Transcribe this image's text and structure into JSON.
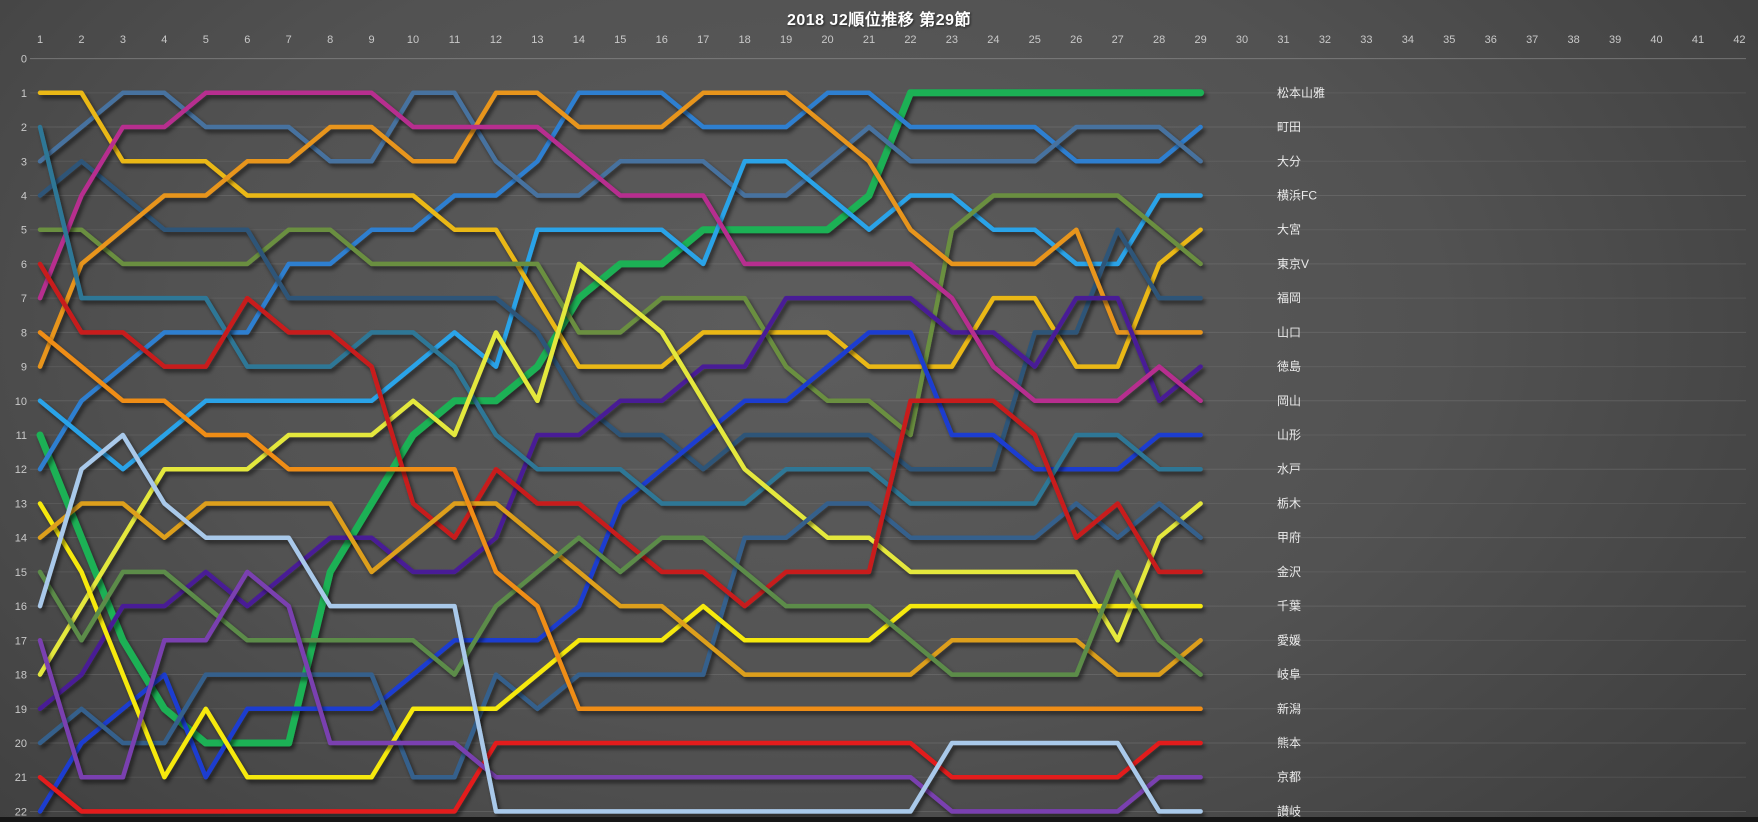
{
  "title": "2018 J2順位推移 第29節",
  "colors": {
    "background_center": "#5d5d5d",
    "background_edge": "#363636",
    "gridline": "#8a8a8a",
    "axis_top_line": "#9a9a9a",
    "axis_label": "#c9c9c9",
    "title_text": "#ffffff",
    "legend_label": "#ebebeb",
    "bottom_bar": "#161616"
  },
  "chart_data": {
    "type": "line",
    "variant": "bump-rank-chart",
    "title": "2018 J2順位推移 第29節",
    "xlabel": "",
    "ylabel": "",
    "x_axis_position": "top",
    "y_inverted": true,
    "grid": "horizontal",
    "legend_position": "right",
    "rounds_played": 29,
    "total_rounds": 42,
    "x_ticks": [
      1,
      2,
      3,
      4,
      5,
      6,
      7,
      8,
      9,
      10,
      11,
      12,
      13,
      14,
      15,
      16,
      17,
      18,
      19,
      20,
      21,
      22,
      23,
      24,
      25,
      26,
      27,
      28,
      29,
      30,
      31,
      32,
      33,
      34,
      35,
      36,
      37,
      38,
      39,
      40,
      41,
      42
    ],
    "y_ticks": [
      0,
      1,
      2,
      3,
      4,
      5,
      6,
      7,
      8,
      9,
      10,
      11,
      12,
      13,
      14,
      15,
      16,
      17,
      18,
      19,
      20,
      21,
      22
    ],
    "highlight_series": "松本山雅",
    "series": [
      {
        "name": "松本山雅",
        "color": "#1cb154",
        "final_rank": 1,
        "values": [
          11,
          14,
          17,
          19,
          20,
          20,
          20,
          15,
          13,
          11,
          10,
          10,
          9,
          7,
          6,
          6,
          5,
          5,
          5,
          5,
          4,
          1,
          1,
          1,
          1,
          1,
          1,
          1,
          1
        ]
      },
      {
        "name": "町田",
        "color": "#2e7fd0",
        "final_rank": 2,
        "values": [
          12,
          10,
          9,
          8,
          8,
          8,
          6,
          6,
          5,
          5,
          4,
          4,
          3,
          1,
          1,
          1,
          2,
          2,
          2,
          1,
          1,
          2,
          2,
          2,
          2,
          3,
          3,
          3,
          2
        ]
      },
      {
        "name": "大分",
        "color": "#46729f",
        "final_rank": 3,
        "values": [
          3,
          2,
          1,
          1,
          2,
          2,
          2,
          3,
          3,
          1,
          1,
          3,
          4,
          4,
          3,
          3,
          3,
          4,
          4,
          3,
          2,
          3,
          3,
          3,
          3,
          2,
          2,
          2,
          3
        ]
      },
      {
        "name": "横浜FC",
        "color": "#29a3e8",
        "final_rank": 4,
        "values": [
          10,
          11,
          12,
          11,
          10,
          10,
          10,
          10,
          10,
          9,
          8,
          9,
          5,
          5,
          5,
          5,
          6,
          3,
          3,
          4,
          5,
          4,
          4,
          5,
          5,
          6,
          6,
          4,
          4
        ]
      },
      {
        "name": "大宮",
        "color": "#eab816",
        "final_rank": 5,
        "values": [
          1,
          1,
          3,
          3,
          3,
          4,
          4,
          4,
          4,
          4,
          5,
          5,
          7,
          9,
          9,
          9,
          8,
          8,
          8,
          8,
          9,
          9,
          9,
          7,
          7,
          9,
          9,
          6,
          5
        ]
      },
      {
        "name": "東京V",
        "color": "#6a8f3f",
        "final_rank": 6,
        "values": [
          5,
          5,
          6,
          6,
          6,
          6,
          5,
          5,
          6,
          6,
          6,
          6,
          6,
          8,
          8,
          7,
          7,
          7,
          9,
          10,
          10,
          11,
          5,
          4,
          4,
          4,
          4,
          5,
          6
        ]
      },
      {
        "name": "福岡",
        "color": "#2f5578",
        "final_rank": 7,
        "values": [
          4,
          3,
          4,
          5,
          5,
          5,
          7,
          7,
          7,
          7,
          7,
          7,
          8,
          10,
          11,
          11,
          12,
          11,
          11,
          11,
          11,
          12,
          12,
          12,
          8,
          8,
          5,
          7,
          7
        ]
      },
      {
        "name": "山口",
        "color": "#e8951c",
        "final_rank": 8,
        "values": [
          9,
          6,
          5,
          4,
          4,
          3,
          3,
          2,
          2,
          3,
          3,
          1,
          1,
          2,
          2,
          2,
          1,
          1,
          1,
          2,
          3,
          5,
          6,
          6,
          6,
          5,
          8,
          8,
          8
        ]
      },
      {
        "name": "徳島",
        "color": "#4a1f96",
        "final_rank": 9,
        "values": [
          19,
          18,
          16,
          16,
          15,
          16,
          15,
          14,
          14,
          15,
          15,
          14,
          11,
          11,
          10,
          10,
          9,
          9,
          7,
          7,
          7,
          7,
          8,
          8,
          9,
          7,
          7,
          10,
          9
        ]
      },
      {
        "name": "岡山",
        "color": "#b72f8f",
        "final_rank": 10,
        "values": [
          7,
          4,
          2,
          2,
          1,
          1,
          1,
          1,
          1,
          2,
          2,
          2,
          2,
          3,
          4,
          4,
          4,
          6,
          6,
          6,
          6,
          6,
          7,
          9,
          10,
          10,
          10,
          9,
          10
        ]
      },
      {
        "name": "山形",
        "color": "#1f3ed0",
        "final_rank": 11,
        "values": [
          22,
          20,
          19,
          18,
          21,
          19,
          19,
          19,
          19,
          18,
          17,
          17,
          17,
          16,
          13,
          12,
          11,
          10,
          10,
          9,
          8,
          8,
          11,
          11,
          12,
          12,
          12,
          11,
          11
        ]
      },
      {
        "name": "水戸",
        "color": "#2e7796",
        "final_rank": 12,
        "values": [
          2,
          7,
          7,
          7,
          7,
          9,
          9,
          9,
          8,
          8,
          9,
          11,
          12,
          12,
          12,
          13,
          13,
          13,
          12,
          12,
          12,
          13,
          13,
          13,
          13,
          11,
          11,
          12,
          12
        ]
      },
      {
        "name": "栃木",
        "color": "#e4e83e",
        "final_rank": 13,
        "values": [
          18,
          16,
          14,
          12,
          12,
          12,
          11,
          11,
          11,
          10,
          11,
          8,
          10,
          6,
          7,
          8,
          10,
          12,
          13,
          14,
          14,
          15,
          15,
          15,
          15,
          15,
          17,
          14,
          13
        ]
      },
      {
        "name": "甲府",
        "color": "#36608c",
        "final_rank": 14,
        "values": [
          20,
          19,
          20,
          20,
          18,
          18,
          18,
          18,
          18,
          21,
          21,
          18,
          19,
          18,
          18,
          18,
          18,
          14,
          14,
          13,
          13,
          14,
          14,
          14,
          14,
          13,
          14,
          13,
          14
        ]
      },
      {
        "name": "金沢",
        "color": "#c81e1e",
        "final_rank": 15,
        "values": [
          6,
          8,
          8,
          9,
          9,
          7,
          8,
          8,
          9,
          13,
          14,
          12,
          13,
          13,
          14,
          15,
          15,
          16,
          15,
          15,
          15,
          10,
          10,
          10,
          11,
          14,
          13,
          15,
          15
        ]
      },
      {
        "name": "千葉",
        "color": "#f6e90f",
        "final_rank": 16,
        "values": [
          13,
          15,
          18,
          21,
          19,
          21,
          21,
          21,
          21,
          19,
          19,
          19,
          18,
          17,
          17,
          17,
          16,
          17,
          17,
          17,
          17,
          16,
          16,
          16,
          16,
          16,
          16,
          16,
          16
        ]
      },
      {
        "name": "愛媛",
        "color": "#dd9f1a",
        "final_rank": 17,
        "values": [
          14,
          13,
          13,
          14,
          13,
          13,
          13,
          13,
          15,
          14,
          13,
          13,
          14,
          15,
          16,
          16,
          17,
          18,
          18,
          18,
          18,
          18,
          17,
          17,
          17,
          17,
          18,
          18,
          17
        ]
      },
      {
        "name": "岐阜",
        "color": "#5b8c4a",
        "final_rank": 18,
        "values": [
          15,
          17,
          15,
          15,
          16,
          17,
          17,
          17,
          17,
          17,
          18,
          16,
          15,
          14,
          15,
          14,
          14,
          15,
          16,
          16,
          16,
          17,
          18,
          18,
          18,
          18,
          15,
          17,
          18
        ]
      },
      {
        "name": "新潟",
        "color": "#ef8d15",
        "final_rank": 19,
        "values": [
          8,
          9,
          10,
          10,
          11,
          11,
          12,
          12,
          12,
          12,
          12,
          15,
          16,
          19,
          19,
          19,
          19,
          19,
          19,
          19,
          19,
          19,
          19,
          19,
          19,
          19,
          19,
          19,
          19
        ]
      },
      {
        "name": "熊本",
        "color": "#e31b1b",
        "final_rank": 20,
        "values": [
          21,
          22,
          22,
          22,
          22,
          22,
          22,
          22,
          22,
          22,
          22,
          20,
          20,
          20,
          20,
          20,
          20,
          20,
          20,
          20,
          20,
          20,
          21,
          21,
          21,
          21,
          21,
          20,
          20
        ]
      },
      {
        "name": "京都",
        "color": "#7a3fb0",
        "final_rank": 21,
        "values": [
          17,
          21,
          21,
          17,
          17,
          15,
          16,
          20,
          20,
          20,
          20,
          21,
          21,
          21,
          21,
          21,
          21,
          21,
          21,
          21,
          21,
          21,
          22,
          22,
          22,
          22,
          22,
          21,
          21
        ]
      },
      {
        "name": "讃岐",
        "color": "#a9c9ea",
        "final_rank": 22,
        "values": [
          16,
          12,
          11,
          13,
          14,
          14,
          14,
          16,
          16,
          16,
          16,
          22,
          22,
          22,
          22,
          22,
          22,
          22,
          22,
          22,
          22,
          22,
          20,
          20,
          20,
          20,
          20,
          22,
          22
        ]
      }
    ]
  }
}
